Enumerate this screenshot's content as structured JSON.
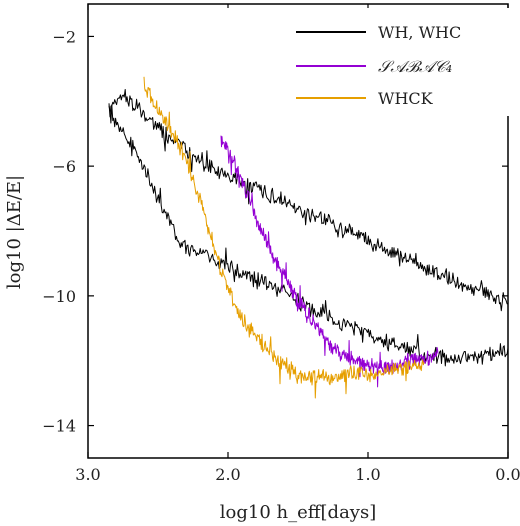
{
  "chart_data": {
    "type": "line",
    "xlabel": "log10 h_eff[days]",
    "ylabel": "log10 |ΔE/E|",
    "xlim": [
      3.0,
      0.0
    ],
    "ylim": [
      -15,
      -1
    ],
    "x_ticks": [
      3.0,
      2.0,
      1.0,
      0.0
    ],
    "x_tick_labels": [
      "3.0",
      "2.0",
      "1.0",
      "0.0"
    ],
    "y_ticks": [
      -2,
      -6,
      -10,
      -14
    ],
    "y_tick_labels": [
      "−2",
      "−6",
      "−10",
      "−14"
    ],
    "x_reversed": true,
    "grid": false,
    "legend_position": "top-right",
    "series": [
      {
        "name": "WH, WHC",
        "color": "#000000",
        "segments": [
          {
            "x": [
              2.85,
              2.75,
              2.6,
              2.45,
              2.3,
              2.1,
              1.9,
              1.7,
              1.5,
              1.3,
              1.1,
              0.9,
              0.7,
              0.5,
              0.3,
              0.15,
              0.0
            ],
            "y": [
              -4.3,
              -3.8,
              -4.4,
              -5.0,
              -5.5,
              -6.1,
              -6.5,
              -6.9,
              -7.3,
              -7.7,
              -8.1,
              -8.5,
              -8.9,
              -9.3,
              -9.7,
              -9.9,
              -10.2
            ]
          },
          {
            "x": [
              2.85,
              2.75,
              2.65,
              2.55,
              2.45,
              2.4,
              2.35,
              2.2,
              2.0,
              1.8,
              1.6,
              1.4,
              1.2,
              1.0,
              0.8,
              0.6,
              0.45,
              0.3,
              0.15,
              0.0
            ],
            "y": [
              -4.3,
              -5.0,
              -5.7,
              -6.5,
              -7.4,
              -7.9,
              -8.4,
              -8.7,
              -9.1,
              -9.5,
              -9.9,
              -10.4,
              -10.8,
              -11.2,
              -11.5,
              -11.8,
              -11.9,
              -11.9,
              -11.8,
              -11.7
            ]
          }
        ]
      },
      {
        "name": "SABAC4",
        "color": "#9400d3",
        "segments": [
          {
            "x": [
              2.05,
              1.95,
              1.85,
              1.75,
              1.65,
              1.55,
              1.45,
              1.35,
              1.25,
              1.1,
              1.0,
              0.9,
              0.8,
              0.7,
              0.6,
              0.5
            ],
            "y": [
              -5.2,
              -6.0,
              -7.0,
              -8.1,
              -9.0,
              -9.8,
              -10.5,
              -11.1,
              -11.6,
              -12.0,
              -12.2,
              -12.2,
              -12.2,
              -12.0,
              -11.9,
              -11.8
            ]
          }
        ]
      },
      {
        "name": "WHCK",
        "color": "#e69f00",
        "segments": [
          {
            "x": [
              2.6,
              2.5,
              2.4,
              2.3,
              2.2,
              2.1,
              2.0,
              1.9,
              1.8,
              1.7,
              1.6,
              1.5,
              1.4,
              1.3,
              1.2,
              1.1,
              1.0,
              0.9,
              0.8,
              0.7,
              0.6
            ],
            "y": [
              -3.5,
              -4.2,
              -5.0,
              -5.8,
              -7.0,
              -8.5,
              -9.8,
              -10.7,
              -11.3,
              -11.7,
              -12.1,
              -12.4,
              -12.5,
              -12.5,
              -12.5,
              -12.4,
              -12.4,
              -12.3,
              -12.3,
              -12.2,
              -12.1
            ]
          }
        ]
      }
    ]
  },
  "legend": {
    "items": [
      {
        "label": "WH, WHC",
        "color": "#000000"
      },
      {
        "label": "𝒮𝒜ℬ𝒜𝒞₄",
        "color": "#9400d3"
      },
      {
        "label": "WHCK",
        "color": "#e69f00"
      }
    ]
  }
}
